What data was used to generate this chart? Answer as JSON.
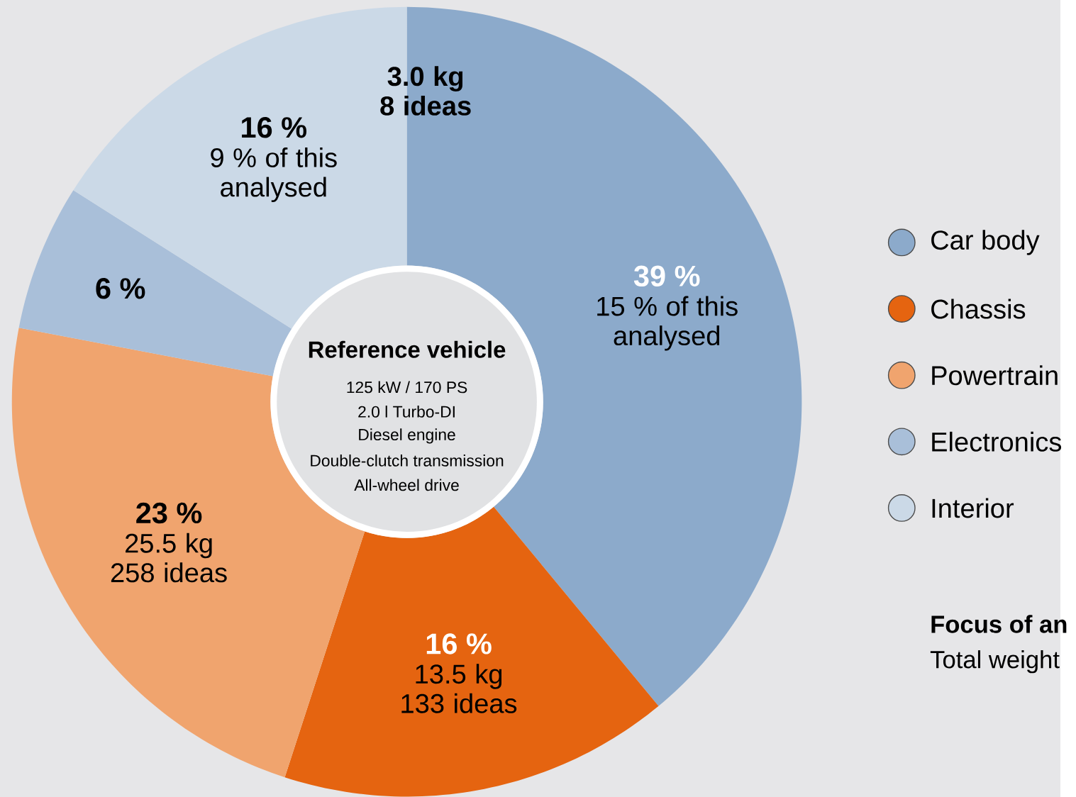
{
  "chart_data": {
    "type": "donut",
    "title": "Reference vehicle",
    "categories": [
      "Car body",
      "Chassis",
      "Powertrain",
      "Electronics",
      "Interior"
    ],
    "values": [
      39,
      16,
      23,
      6,
      16
    ],
    "colors": [
      "#8caacb",
      "#e56410",
      "#f0a46e",
      "#a9bfd9",
      "#cbd9e7"
    ],
    "value_labels": [
      "39 %",
      "16 %",
      "23 %",
      "6 %",
      "16 %"
    ],
    "legend": "right",
    "annotations": [
      {
        "text": "15 % of this analysed",
        "x": "Car body"
      },
      {
        "text": "13.5 kg 133 ideas",
        "x": "Chassis"
      },
      {
        "text": "25.5 kg 258 ideas",
        "x": "Powertrain"
      },
      {
        "text": "9 % of this analysed",
        "x": "Interior"
      },
      "3.0 kg 8 ideas",
      "125 kW / 170 PS",
      "2.0 l Turbo-DI",
      "Diesel engine",
      "Double-clutch transmission",
      "All-wheel drive",
      "Focus of an",
      "Total weight"
    ]
  }
}
